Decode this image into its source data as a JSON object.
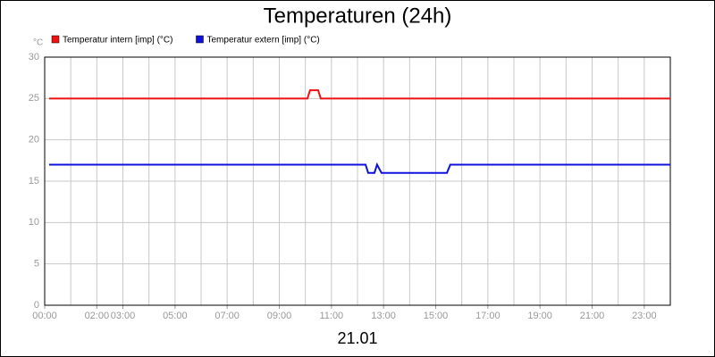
{
  "chart_data": {
    "type": "line",
    "title": "Temperaturen (24h)",
    "subtitle": "21.01",
    "y_label": "°C",
    "xlim": [
      0,
      24
    ],
    "ylim": [
      0,
      30
    ],
    "yticks": [
      0,
      5,
      10,
      15,
      20,
      25,
      30
    ],
    "xticks": [
      {
        "value": 0,
        "label": "00:00"
      },
      {
        "value": 2,
        "label": "02:00"
      },
      {
        "value": 3,
        "label": "03:00"
      },
      {
        "value": 5,
        "label": "05:00"
      },
      {
        "value": 7,
        "label": "07:00"
      },
      {
        "value": 9,
        "label": "09:00"
      },
      {
        "value": 11,
        "label": "11:00"
      },
      {
        "value": 13,
        "label": "13:00"
      },
      {
        "value": 15,
        "label": "15:00"
      },
      {
        "value": 17,
        "label": "17:00"
      },
      {
        "value": 19,
        "label": "19:00"
      },
      {
        "value": 21,
        "label": "21:00"
      },
      {
        "value": 23,
        "label": "23:00"
      }
    ],
    "xgrid": [
      1,
      2,
      3,
      4,
      5,
      6,
      7,
      8,
      9,
      10,
      11,
      12,
      13,
      14,
      15,
      16,
      17,
      18,
      19,
      20,
      21,
      22,
      23
    ],
    "grid": true,
    "legend": "top-left",
    "series": [
      {
        "name": "Temperatur intern [imp] (°C)",
        "color": "#ee1111",
        "x": [
          0.17,
          10.08,
          10.18,
          10.49,
          10.59,
          24
        ],
        "values": [
          25,
          25,
          26,
          26,
          25,
          25
        ]
      },
      {
        "name": "Temperatur extern [imp] (°C)",
        "color": "#1111dd",
        "x": [
          0.17,
          12.31,
          12.41,
          12.65,
          12.75,
          12.92,
          15.43,
          15.56,
          24
        ],
        "values": [
          17,
          17,
          16,
          16,
          17,
          16,
          16,
          17,
          17
        ]
      }
    ]
  }
}
